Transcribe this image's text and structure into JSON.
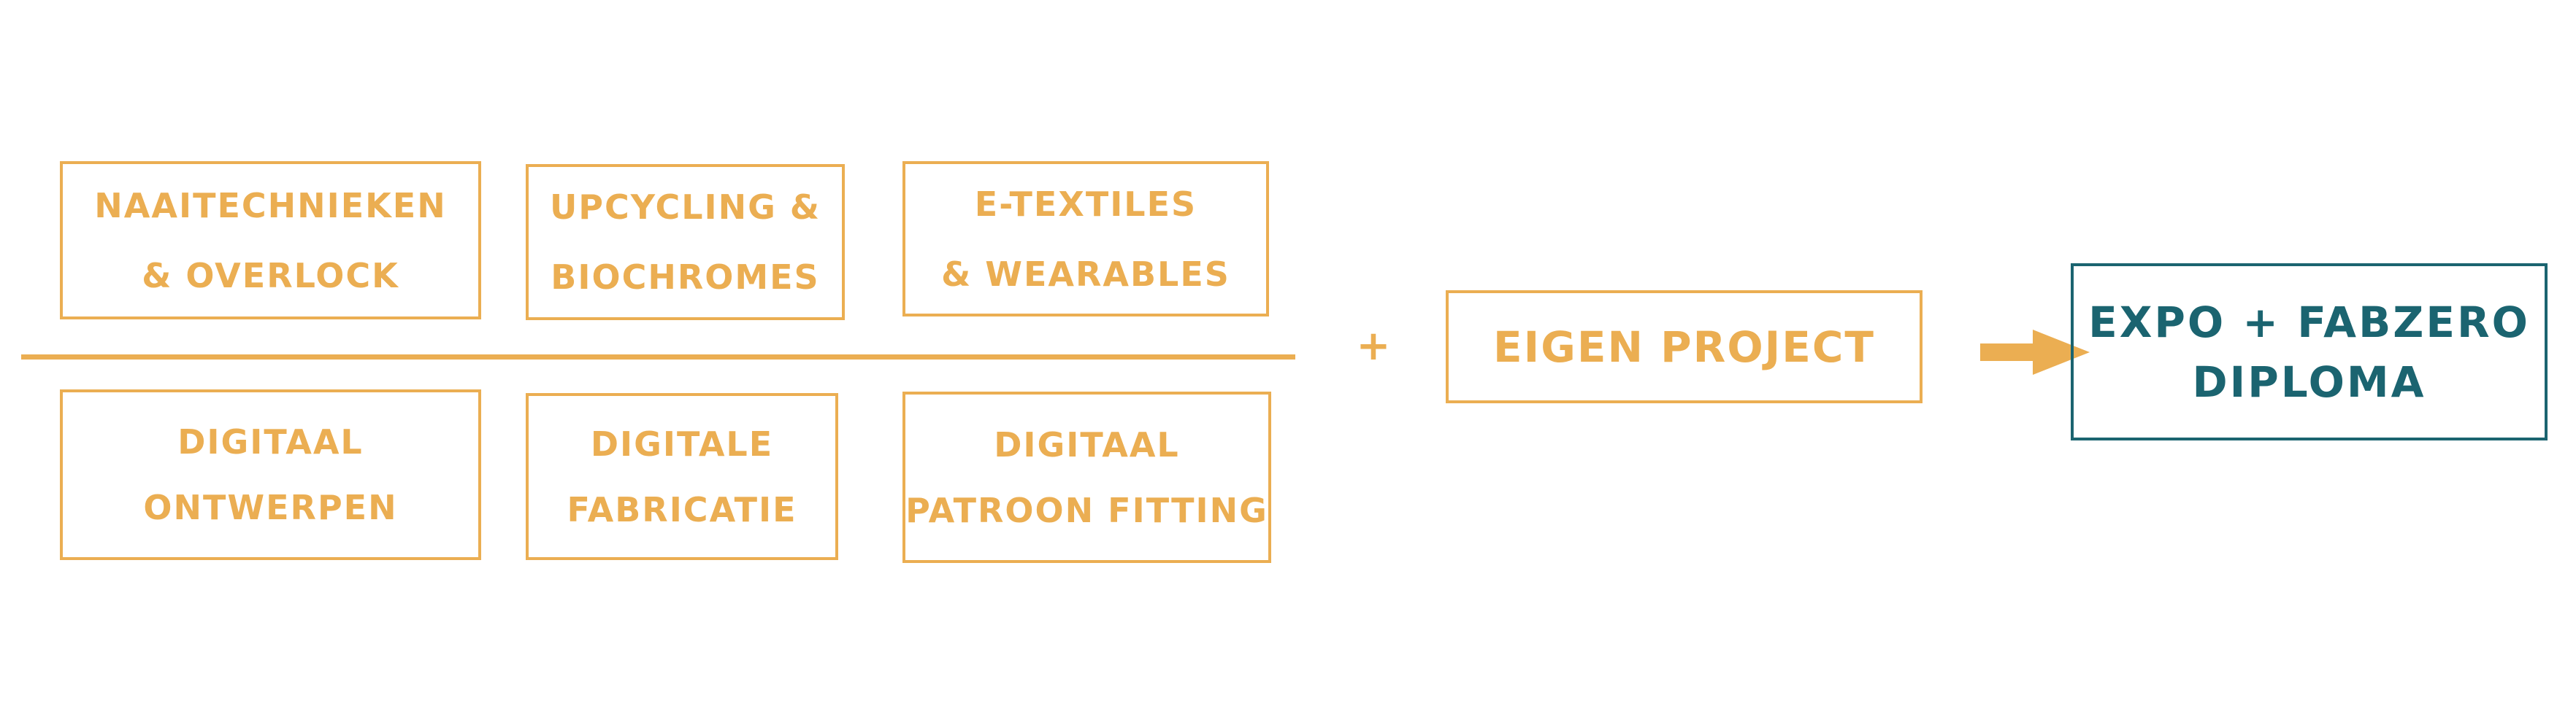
{
  "modules_top": [
    {
      "lines": [
        "Naaitechnieken",
        "& overlock"
      ]
    },
    {
      "lines": [
        "Upcycling &",
        "biochromes"
      ]
    },
    {
      "lines": [
        "E-textiles",
        "& wearables"
      ]
    }
  ],
  "modules_bottom": [
    {
      "lines": [
        "Digitaal",
        "ontwerpen"
      ]
    },
    {
      "lines": [
        "Digitale",
        "fabricatie"
      ]
    },
    {
      "lines": [
        "Digitaal",
        "patroon fitting"
      ]
    }
  ],
  "plus_sign": "+",
  "own_project": {
    "lines": [
      "Eigen project"
    ]
  },
  "result": {
    "lines": [
      "Expo + FabZero",
      "diploma"
    ]
  },
  "colors": {
    "accent": "#EBAE52",
    "result": "#1B6470"
  },
  "icons": {
    "arrow": "arrow-right-icon"
  }
}
